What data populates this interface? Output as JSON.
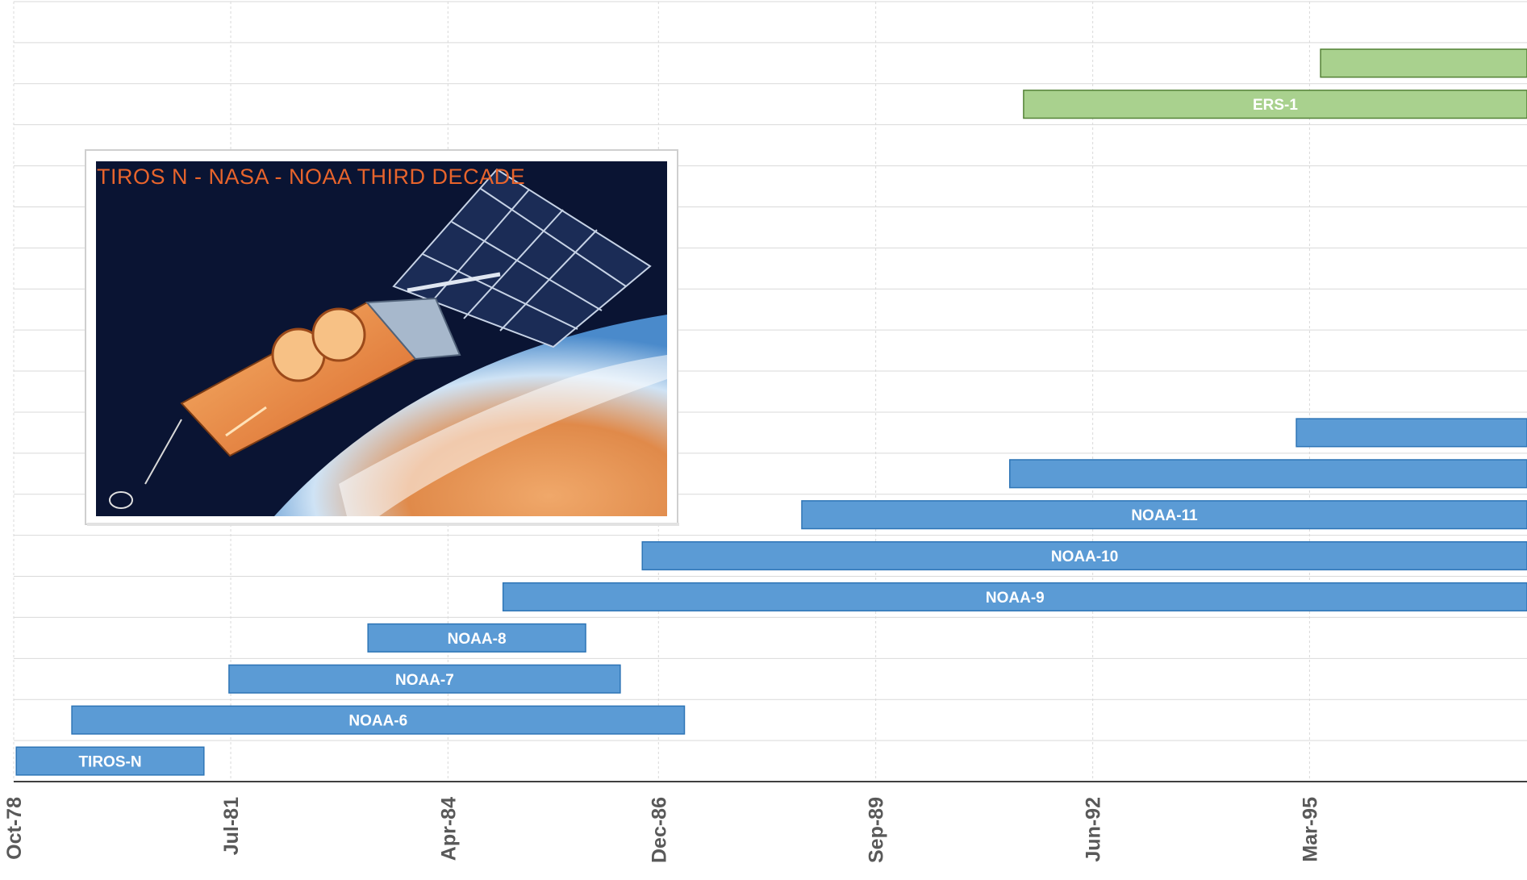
{
  "chart_data": {
    "type": "bar",
    "orientation": "horizontal-timeline",
    "x_axis": {
      "type": "date",
      "range": [
        "1978-10-01",
        "1997-12-01"
      ],
      "ticks": [
        {
          "date": "1978-10-01",
          "label": "Oct-78"
        },
        {
          "date": "1981-07-01",
          "label": "Jul-81"
        },
        {
          "date": "1984-04-01",
          "label": "Apr-84"
        },
        {
          "date": "1986-12-01",
          "label": "Dec-86"
        },
        {
          "date": "1989-09-01",
          "label": "Sep-89"
        },
        {
          "date": "1992-06-01",
          "label": "Jun-92"
        },
        {
          "date": "1995-03-01",
          "label": "Mar-95"
        }
      ]
    },
    "grid": true,
    "rows": 19,
    "series": [
      {
        "name": "TIROS-N",
        "start": "1978-10-13",
        "end": "1981-02-27",
        "color": "#5b9bd5",
        "row": 0,
        "label": "TIROS-N"
      },
      {
        "name": "NOAA-6",
        "start": "1979-06-27",
        "end": "1987-03-31",
        "color": "#5b9bd5",
        "row": 1,
        "label": "NOAA-6"
      },
      {
        "name": "NOAA-7",
        "start": "1981-06-23",
        "end": "1986-06-07",
        "color": "#5b9bd5",
        "row": 2,
        "label": "NOAA-7"
      },
      {
        "name": "NOAA-8",
        "start": "1983-03-28",
        "end": "1985-12-29",
        "color": "#5b9bd5",
        "row": 3,
        "label": "NOAA-8"
      },
      {
        "name": "NOAA-9",
        "start": "1984-12-12",
        "end": "1997-12-01",
        "color": "#5b9bd5",
        "row": 4,
        "label": "NOAA-9"
      },
      {
        "name": "NOAA-10",
        "start": "1986-09-17",
        "end": "1997-12-01",
        "color": "#5b9bd5",
        "row": 5,
        "label": "NOAA-10"
      },
      {
        "name": "NOAA-11",
        "start": "1988-09-24",
        "end": "1997-12-01",
        "color": "#5b9bd5",
        "row": 6,
        "label": "NOAA-11"
      },
      {
        "name": "",
        "start": "1991-05-14",
        "end": "1997-12-01",
        "color": "#5b9bd5",
        "row": 7,
        "label": ""
      },
      {
        "name": "",
        "start": "1994-12-30",
        "end": "1997-12-01",
        "color": "#5b9bd5",
        "row": 8,
        "label": ""
      },
      {
        "name": "ERS-1",
        "start": "1991-07-17",
        "end": "1997-12-01",
        "color": "#a9d18e",
        "row": 16,
        "label": "ERS-1"
      },
      {
        "name": "",
        "start": "1995-04-21",
        "end": "1997-12-01",
        "color": "#a9d18e",
        "row": 17,
        "label": ""
      }
    ]
  },
  "inset_image": {
    "caption": "TIROS N - NASA - NOAA THIRD DECADE"
  },
  "colors": {
    "blue_fill": "#5b9bd5",
    "blue_stroke": "#2e75b6",
    "green_fill": "#a9d18e",
    "green_stroke": "#538135",
    "grid": "#d9d9d9",
    "axis": "#404040",
    "tick_text": "#595959"
  }
}
